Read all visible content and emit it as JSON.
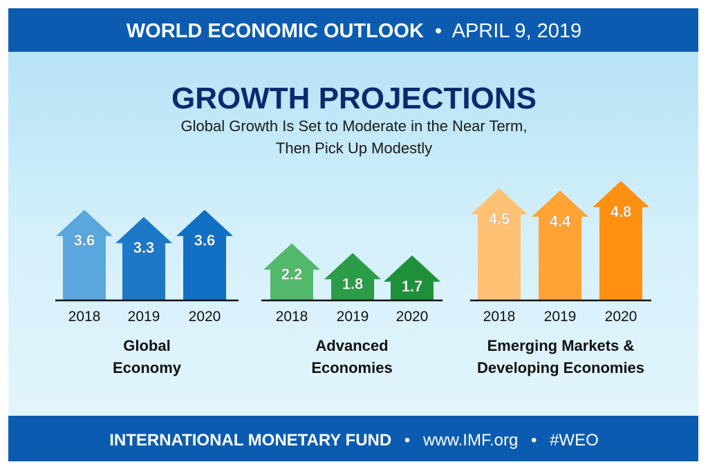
{
  "header": {
    "title": "WORLD ECONOMIC OUTLOOK",
    "separator": "•",
    "date": "APRIL 9, 2019"
  },
  "footer": {
    "org": "INTERNATIONAL MONETARY FUND",
    "separator": "•",
    "url": "www.IMF.org",
    "hashtag": "#WEO"
  },
  "colors": {
    "band": "#0b5cb0",
    "background": "#bfe6f6",
    "title": "#0a2a6e"
  },
  "chart_data": {
    "type": "bar",
    "title": "GROWTH PROJECTIONS",
    "subtitle_line1": "Global Growth Is Set to Moderate in the Near Term,",
    "subtitle_line2": "Then Pick Up Modestly",
    "categories": [
      "2018",
      "2019",
      "2020"
    ],
    "groups": [
      {
        "label_line1": "Global",
        "label_line2": "Economy",
        "values": [
          3.6,
          3.3,
          3.6
        ],
        "colors": [
          "#5aa7dd",
          "#1d78c8",
          "#1170c4"
        ]
      },
      {
        "label_line1": "Advanced",
        "label_line2": "Economies",
        "values": [
          2.2,
          1.8,
          1.7
        ],
        "colors": [
          "#52b86c",
          "#2b9c47",
          "#1f903a"
        ]
      },
      {
        "label_line1": "Emerging Markets &",
        "label_line2": "Developing Economies",
        "values": [
          4.5,
          4.4,
          4.8
        ],
        "colors": [
          "#ffc275",
          "#ffa335",
          "#ff9012"
        ]
      }
    ],
    "grid": false,
    "legend": "none"
  }
}
